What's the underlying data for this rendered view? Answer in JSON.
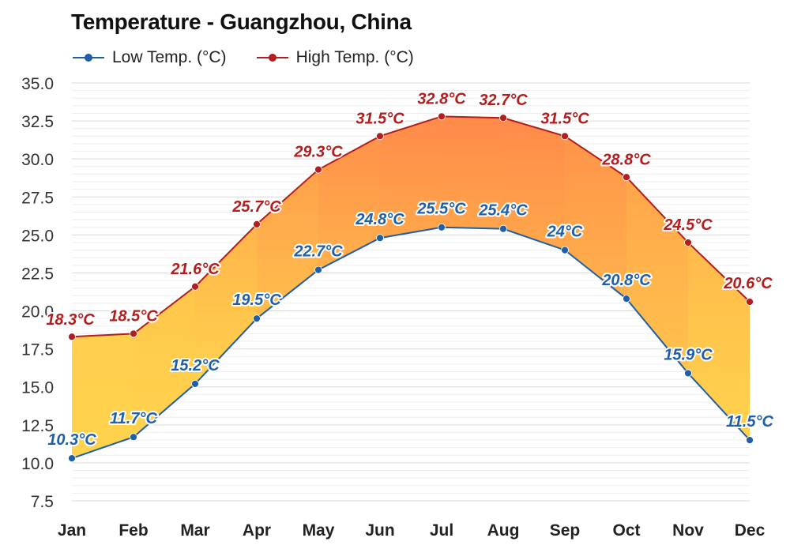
{
  "chart_data": {
    "type": "area",
    "title": "Temperature - Guangzhou, China",
    "xlabel": "",
    "ylabel": "",
    "categories": [
      "Jan",
      "Feb",
      "Mar",
      "Apr",
      "May",
      "Jun",
      "Jul",
      "Aug",
      "Sep",
      "Oct",
      "Nov",
      "Dec"
    ],
    "ylim": [
      7.5,
      35.0
    ],
    "yticks": [
      "7.5",
      "10.0",
      "12.5",
      "15.0",
      "17.5",
      "20.0",
      "22.5",
      "25.0",
      "27.5",
      "30.0",
      "32.5",
      "35.0"
    ],
    "grid": true,
    "legend_position": "top-left",
    "series": [
      {
        "name": "Low Temp. (°C)",
        "color": "#1f5fa8",
        "values": [
          10.3,
          11.7,
          15.2,
          19.5,
          22.7,
          24.8,
          25.5,
          25.4,
          24.0,
          20.8,
          15.9,
          11.5
        ],
        "labels": [
          "10.3°C",
          "11.7°C",
          "15.2°C",
          "19.5°C",
          "22.7°C",
          "24.8°C",
          "25.5°C",
          "25.4°C",
          "24°C",
          "20.8°C",
          "15.9°C",
          "11.5°C"
        ]
      },
      {
        "name": "High Temp. (°C)",
        "color": "#b31d1d",
        "values": [
          18.3,
          18.5,
          21.6,
          25.7,
          29.3,
          31.5,
          32.8,
          32.7,
          31.5,
          28.8,
          24.5,
          20.6
        ],
        "labels": [
          "18.3°C",
          "18.5°C",
          "21.6°C",
          "25.7°C",
          "29.3°C",
          "31.5°C",
          "32.8°C",
          "32.7°C",
          "31.5°C",
          "28.8°C",
          "24.5°C",
          "20.6°C"
        ]
      }
    ],
    "band_fill": {
      "cool": "#ffd34d",
      "warm": "#ff8a4a"
    }
  }
}
